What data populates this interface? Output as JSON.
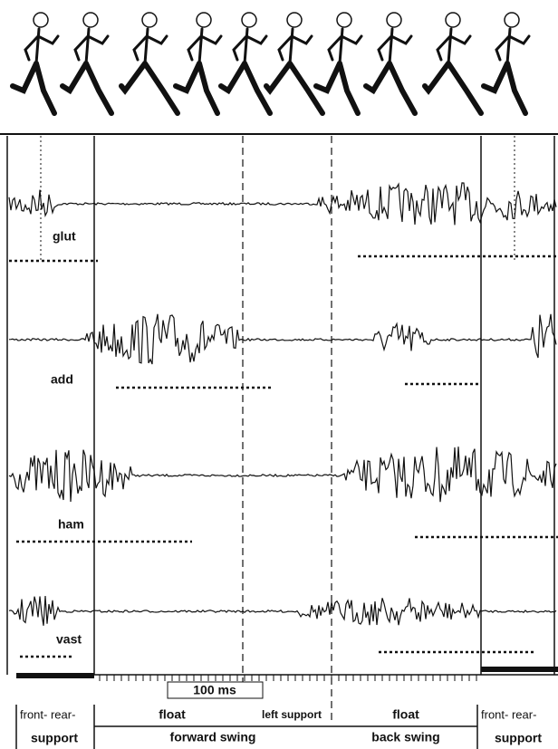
{
  "muscles": [
    "glut",
    "add",
    "ham",
    "vast"
  ],
  "scale_bar": "100 ms",
  "phases": {
    "start": {
      "top": "front- rear-",
      "bottom": "support"
    },
    "float_1": "float",
    "forward_swing": "forward swing",
    "left_support": "left support",
    "float_2": "float",
    "back_swing": "back swing",
    "end": {
      "top": "front- rear-",
      "bottom": "support"
    }
  }
}
